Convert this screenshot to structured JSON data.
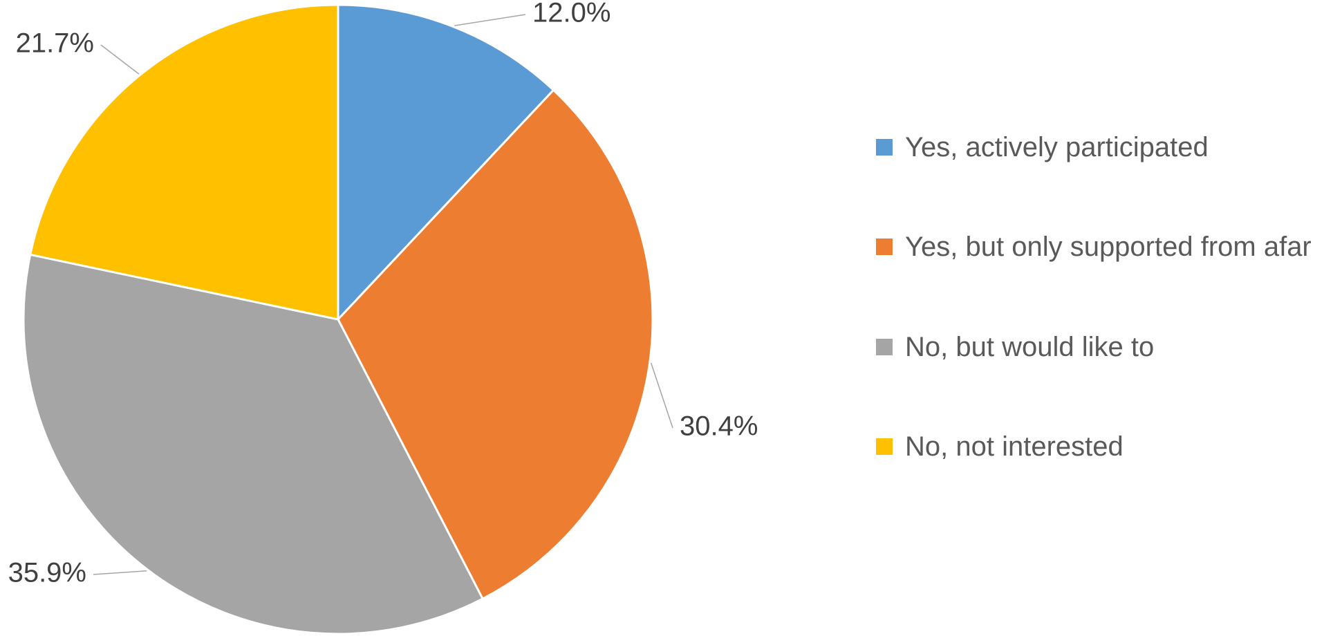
{
  "chart_data": {
    "type": "pie",
    "categories": [
      "Yes, actively participated",
      "Yes, but only supported from afar",
      "No, but would like to",
      "No, not interested"
    ],
    "values": [
      12.0,
      30.4,
      35.9,
      21.7
    ],
    "value_labels": [
      "12.0%",
      "30.4%",
      "35.9%",
      "21.7%"
    ],
    "colors": [
      "#5b9bd5",
      "#ed7d31",
      "#a5a5a5",
      "#ffc000"
    ],
    "legend": "right"
  }
}
